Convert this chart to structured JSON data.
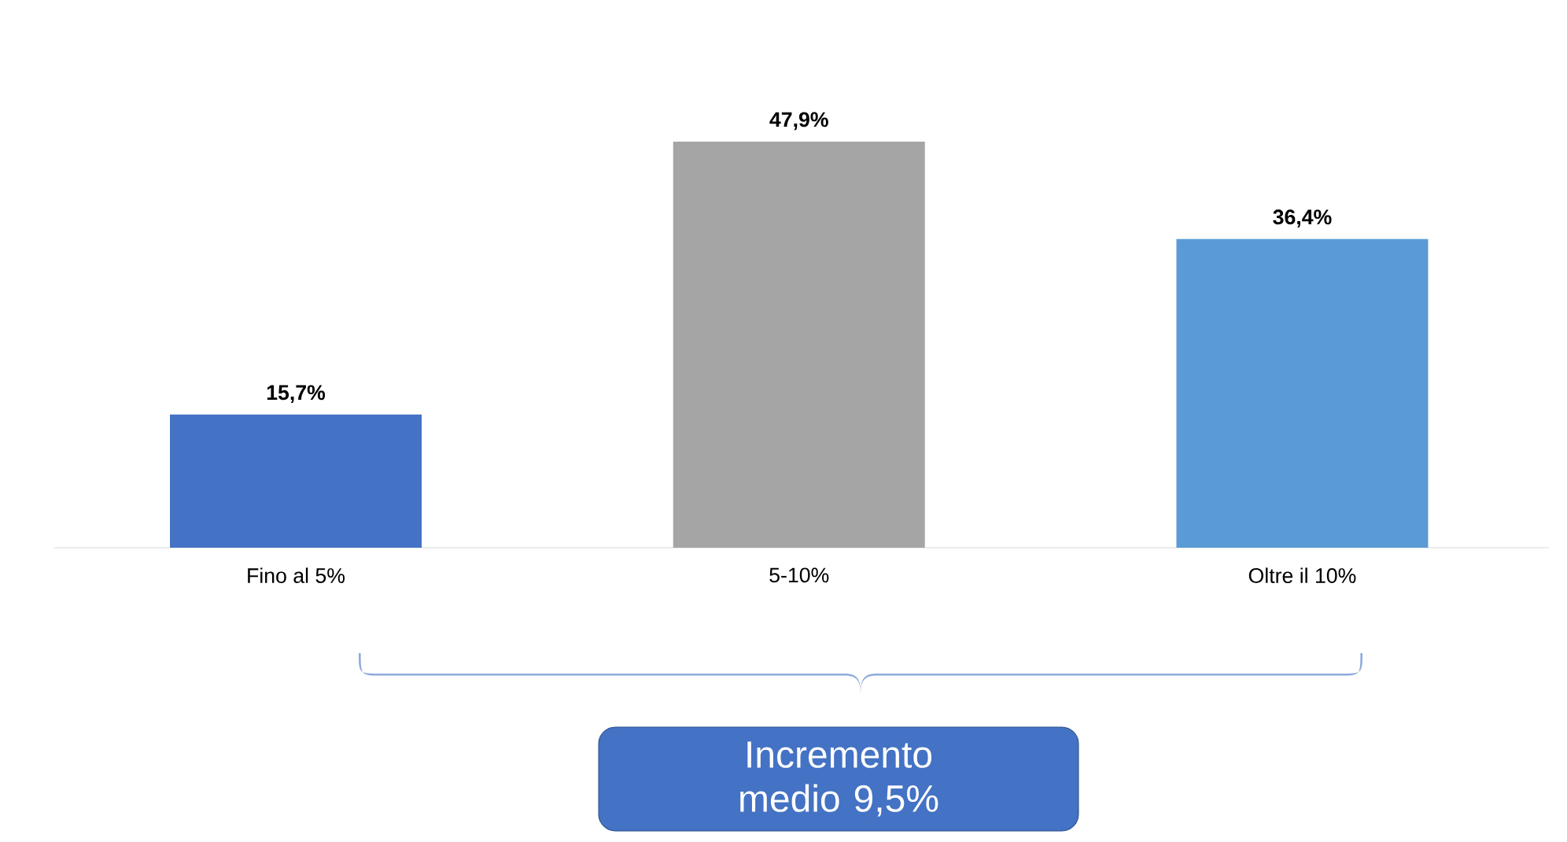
{
  "chart_data": {
    "type": "bar",
    "categories": [
      "Fino al 5%",
      "5-10%",
      "Oltre il 10%"
    ],
    "values": [
      15.7,
      47.9,
      36.4
    ],
    "value_labels": [
      "15,7%",
      "47,9%",
      "36,4%"
    ],
    "colors": [
      "#4472c4",
      "#a5a5a5",
      "#5b9bd5"
    ],
    "annotations": [
      "Incremento medio 9,5%"
    ]
  }
}
